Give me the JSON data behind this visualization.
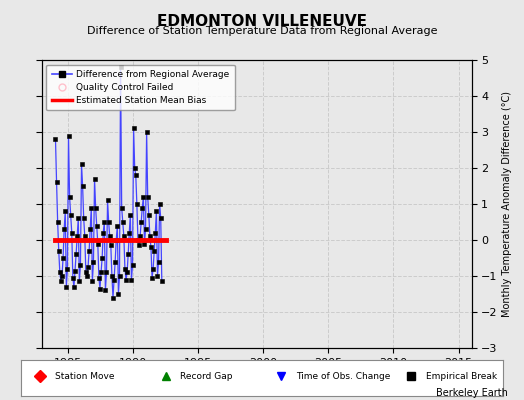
{
  "title": "EDMONTON VILLENEUVE",
  "subtitle": "Difference of Station Temperature Data from Regional Average",
  "ylabel_right": "Monthly Temperature Anomaly Difference (°C)",
  "xlim": [
    1983,
    2016
  ],
  "ylim": [
    -3,
    5
  ],
  "yticks": [
    -3,
    -2,
    -1,
    0,
    1,
    2,
    3,
    4,
    5
  ],
  "xticks": [
    1985,
    1990,
    1995,
    2000,
    2005,
    2010,
    2015
  ],
  "bg_color": "#e8e8e8",
  "bias_line_y": 0.0,
  "bias_x_start": 1984.0,
  "bias_x_end": 1992.5,
  "footer": "Berkeley Earth",
  "raw_data": [
    [
      1984,
      1,
      2.8
    ],
    [
      1984,
      2,
      1.6
    ],
    [
      1984,
      3,
      0.5
    ],
    [
      1984,
      4,
      -0.3
    ],
    [
      1984,
      5,
      -0.9
    ],
    [
      1984,
      6,
      -1.15
    ],
    [
      1984,
      7,
      -1.0
    ],
    [
      1984,
      8,
      -0.5
    ],
    [
      1984,
      9,
      0.3
    ],
    [
      1984,
      10,
      0.8
    ],
    [
      1984,
      11,
      -1.3
    ],
    [
      1984,
      12,
      -0.8
    ],
    [
      1985,
      1,
      2.9
    ],
    [
      1985,
      2,
      1.2
    ],
    [
      1985,
      3,
      0.7
    ],
    [
      1985,
      4,
      0.2
    ],
    [
      1985,
      5,
      -1.05
    ],
    [
      1985,
      6,
      -1.3
    ],
    [
      1985,
      7,
      -0.85
    ],
    [
      1985,
      8,
      -0.4
    ],
    [
      1985,
      9,
      0.1
    ],
    [
      1985,
      10,
      0.6
    ],
    [
      1985,
      11,
      -1.15
    ],
    [
      1985,
      12,
      -0.7
    ],
    [
      1986,
      1,
      2.1
    ],
    [
      1986,
      2,
      1.5
    ],
    [
      1986,
      3,
      0.6
    ],
    [
      1986,
      4,
      0.1
    ],
    [
      1986,
      5,
      -0.9
    ],
    [
      1986,
      6,
      -1.0
    ],
    [
      1986,
      7,
      -0.75
    ],
    [
      1986,
      8,
      -0.3
    ],
    [
      1986,
      9,
      0.3
    ],
    [
      1986,
      10,
      0.9
    ],
    [
      1986,
      11,
      -1.15
    ],
    [
      1986,
      12,
      -0.6
    ],
    [
      1987,
      1,
      1.7
    ],
    [
      1987,
      2,
      0.9
    ],
    [
      1987,
      3,
      0.4
    ],
    [
      1987,
      4,
      -0.1
    ],
    [
      1987,
      5,
      -1.05
    ],
    [
      1987,
      6,
      -1.35
    ],
    [
      1987,
      7,
      -0.9
    ],
    [
      1987,
      8,
      -0.5
    ],
    [
      1987,
      9,
      0.2
    ],
    [
      1987,
      10,
      0.5
    ],
    [
      1987,
      11,
      -1.4
    ],
    [
      1987,
      12,
      -0.9
    ],
    [
      1988,
      1,
      1.1
    ],
    [
      1988,
      2,
      0.5
    ],
    [
      1988,
      3,
      0.1
    ],
    [
      1988,
      4,
      -0.15
    ],
    [
      1988,
      5,
      -1.0
    ],
    [
      1988,
      6,
      -1.6
    ],
    [
      1988,
      7,
      -1.1
    ],
    [
      1988,
      8,
      -0.6
    ],
    [
      1988,
      9,
      0.0
    ],
    [
      1988,
      10,
      0.4
    ],
    [
      1988,
      11,
      -1.5
    ],
    [
      1988,
      12,
      -1.0
    ],
    [
      1989,
      1,
      4.8
    ],
    [
      1989,
      2,
      0.9
    ],
    [
      1989,
      3,
      0.5
    ],
    [
      1989,
      4,
      0.1
    ],
    [
      1989,
      5,
      -0.8
    ],
    [
      1989,
      6,
      -1.1
    ],
    [
      1989,
      7,
      -0.9
    ],
    [
      1989,
      8,
      -0.4
    ],
    [
      1989,
      9,
      0.2
    ],
    [
      1989,
      10,
      0.7
    ],
    [
      1989,
      11,
      -1.1
    ],
    [
      1989,
      12,
      -0.7
    ],
    [
      1990,
      1,
      3.1
    ],
    [
      1990,
      2,
      2.0
    ],
    [
      1990,
      3,
      1.8
    ],
    [
      1990,
      4,
      1.0
    ],
    [
      1990,
      5,
      0.0
    ],
    [
      1990,
      6,
      -0.15
    ],
    [
      1990,
      7,
      0.1
    ],
    [
      1990,
      8,
      0.5
    ],
    [
      1990,
      9,
      0.9
    ],
    [
      1990,
      10,
      1.2
    ],
    [
      1990,
      11,
      -0.1
    ],
    [
      1990,
      12,
      0.3
    ],
    [
      1991,
      1,
      3.0
    ],
    [
      1991,
      2,
      1.2
    ],
    [
      1991,
      3,
      0.7
    ],
    [
      1991,
      4,
      0.1
    ],
    [
      1991,
      5,
      -0.2
    ],
    [
      1991,
      6,
      -1.05
    ],
    [
      1991,
      7,
      -0.8
    ],
    [
      1991,
      8,
      -0.3
    ],
    [
      1991,
      9,
      0.2
    ],
    [
      1991,
      10,
      0.8
    ],
    [
      1991,
      11,
      -1.0
    ],
    [
      1991,
      12,
      -0.6
    ],
    [
      1992,
      1,
      1.0
    ],
    [
      1992,
      2,
      0.6
    ],
    [
      1992,
      3,
      -1.15
    ]
  ],
  "line_color": "#4444ff",
  "line_color_light": "#aaaaff",
  "marker_color": "black",
  "marker_size": 3,
  "bias_color": "red",
  "title_fontsize": 11,
  "subtitle_fontsize": 8,
  "tick_fontsize": 8,
  "ylabel_fontsize": 7
}
